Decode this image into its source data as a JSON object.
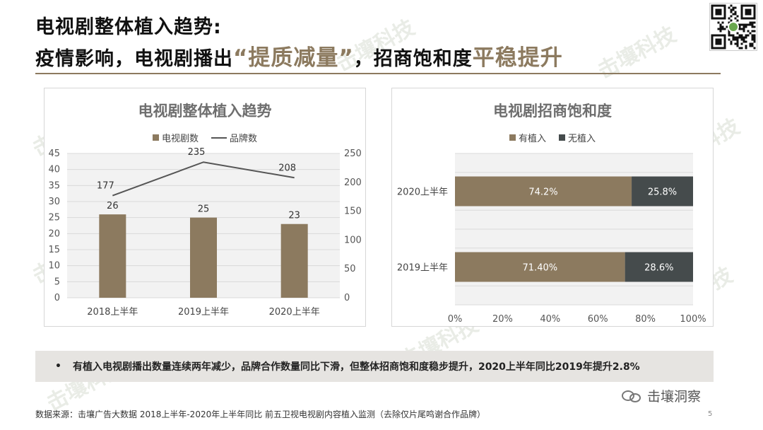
{
  "header": {
    "title_line1": "电视剧整体植入趋势:",
    "title_line2_a": "疫情影响，电视剧播出",
    "title_line2_hl1": "“提质减量”",
    "title_line2_b": "，招商饱和度",
    "title_line2_hl2": "平稳提升"
  },
  "watermark_text": "击壤科技",
  "colors": {
    "accent": "#8c7a5f",
    "dark": "#454b4c",
    "grid": "#d9d9d9",
    "plot_bg": "#f2f2f2"
  },
  "chart_data": [
    {
      "type": "bar",
      "title": "电视剧整体植入趋势",
      "categories": [
        "2018上半年",
        "2019上半年",
        "2020上半年"
      ],
      "series": [
        {
          "name": "电视剧数",
          "type": "bar",
          "values": [
            26,
            25,
            23
          ],
          "axis": "left"
        },
        {
          "name": "品牌数",
          "type": "line",
          "values": [
            177,
            235,
            208
          ],
          "axis": "right"
        }
      ],
      "ylim": [
        0,
        45
      ],
      "yticks": [
        0,
        5,
        10,
        15,
        20,
        25,
        30,
        35,
        40,
        45
      ],
      "y2lim": [
        0,
        250
      ],
      "y2ticks": [
        0,
        50,
        100,
        150,
        200,
        250
      ],
      "legend": "top",
      "grid": true
    },
    {
      "type": "bar",
      "orientation": "horizontal",
      "stacked": true,
      "title": "电视剧招商饱和度",
      "categories": [
        "2020上半年",
        "2019上半年"
      ],
      "series": [
        {
          "name": "有植入",
          "values": [
            74.2,
            71.4
          ],
          "labels": [
            "74.2%",
            "71.40%"
          ]
        },
        {
          "name": "无植入",
          "values": [
            25.8,
            28.6
          ],
          "labels": [
            "25.8%",
            "28.6%"
          ]
        }
      ],
      "xlim": [
        0,
        100
      ],
      "xticks": [
        "0%",
        "20%",
        "40%",
        "60%",
        "80%",
        "100%"
      ],
      "legend": "top",
      "grid": true
    }
  ],
  "summary": {
    "bullet": "•",
    "text": "有植入电视剧播出数量连续两年减少，品牌合作数量同比下滑，但整体招商饱和度稳步提升，2020上半年同比2019年提升2.8%"
  },
  "brand": {
    "name": "击壤洞察",
    "icon": "wechat-icon"
  },
  "footer": {
    "source": "数据来源：击壤广告大数据  2018上半年-2020年上半年同比 前五卫视电视剧内容植入监测（去除仅片尾鸣谢合作品牌）",
    "page_number": "5"
  }
}
